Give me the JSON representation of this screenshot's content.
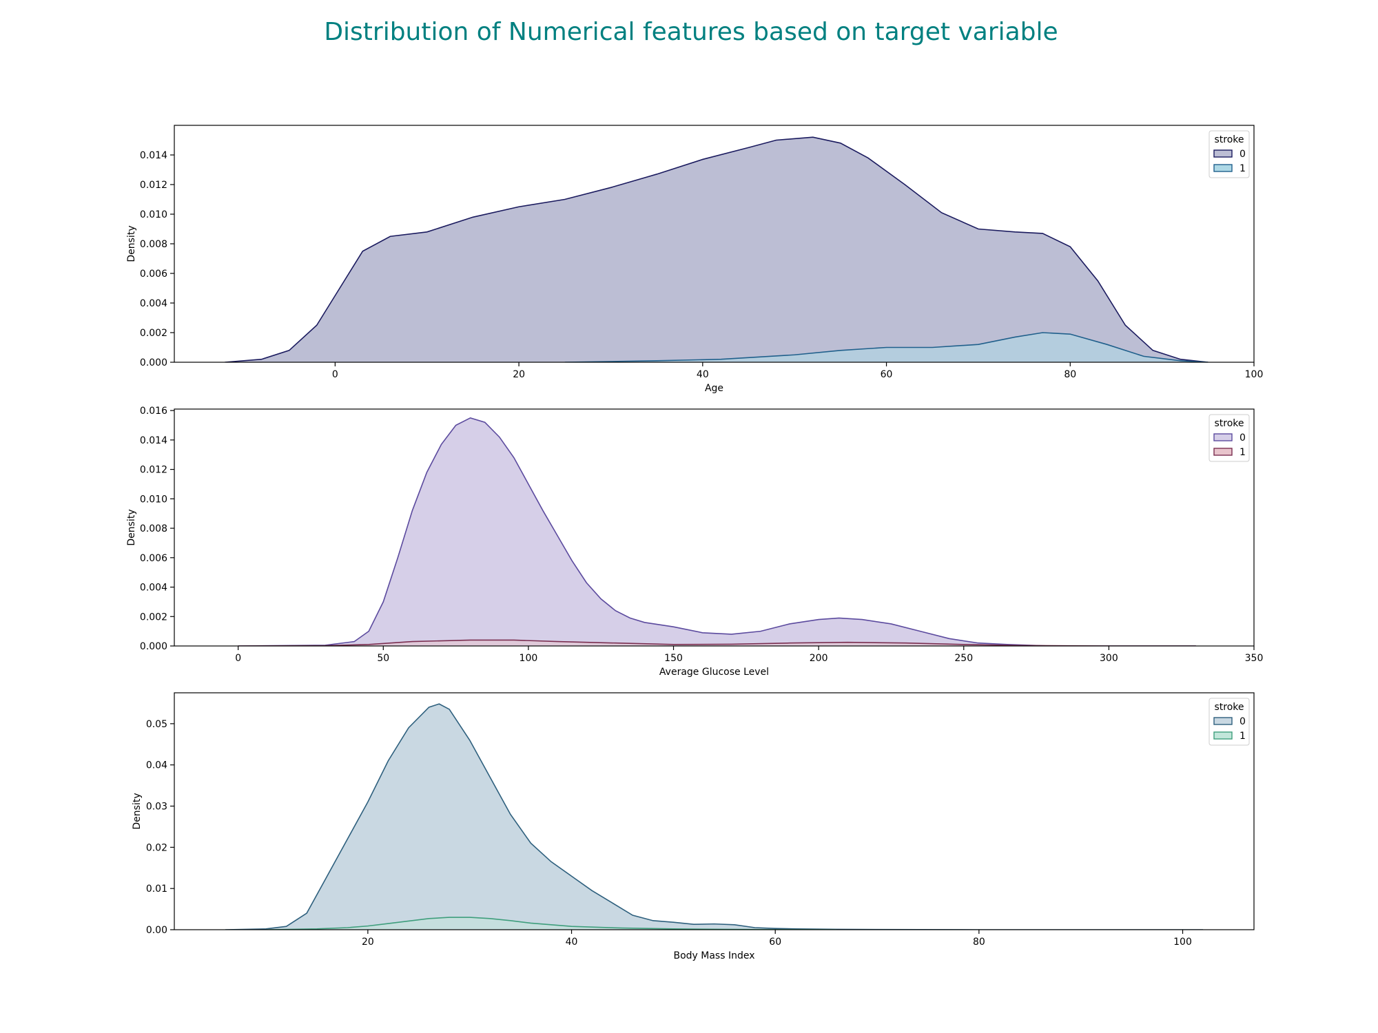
{
  "title": "Distribution of Numerical features based on target variable",
  "title_color": "#008080",
  "chart_data": [
    {
      "type": "area",
      "xlabel": "Age",
      "ylabel": "Density",
      "xlim": [
        -17.5,
        100
      ],
      "ylim": [
        0,
        0.016
      ],
      "xticks": [
        0,
        20,
        40,
        60,
        80,
        100
      ],
      "yticks": [
        0,
        0.002,
        0.004,
        0.006,
        0.008,
        0.01,
        0.012,
        0.014
      ],
      "ytick_decimals": 3,
      "legend": {
        "title": "stroke",
        "position": "top-right"
      },
      "series": [
        {
          "name": "0",
          "fill": "#bcbed4",
          "stroke": "#1a1a5e",
          "x": [
            -12,
            -8,
            -5,
            -2,
            0,
            3,
            6,
            10,
            15,
            20,
            25,
            30,
            35,
            40,
            45,
            48,
            52,
            55,
            58,
            62,
            66,
            70,
            74,
            77,
            80,
            83,
            86,
            89,
            92,
            95
          ],
          "y": [
            0,
            0.0002,
            0.0008,
            0.0025,
            0.0045,
            0.0075,
            0.0085,
            0.0088,
            0.0098,
            0.0105,
            0.011,
            0.0118,
            0.0127,
            0.0137,
            0.0145,
            0.015,
            0.0152,
            0.0148,
            0.0138,
            0.012,
            0.0101,
            0.009,
            0.0088,
            0.0087,
            0.0078,
            0.0055,
            0.0025,
            0.0008,
            0.0002,
            0
          ]
        },
        {
          "name": "1",
          "fill": "#add8e6",
          "stroke": "#1f5f8b",
          "x": [
            25,
            35,
            42,
            50,
            55,
            60,
            65,
            70,
            74,
            77,
            80,
            84,
            88,
            92,
            95
          ],
          "y": [
            0,
            0.0001,
            0.0002,
            0.0005,
            0.0008,
            0.001,
            0.001,
            0.0012,
            0.0017,
            0.002,
            0.0019,
            0.0012,
            0.0004,
            0.0001,
            0
          ]
        }
      ]
    },
    {
      "type": "area",
      "xlabel": "Average Glucose Level",
      "ylabel": "Density",
      "xlim": [
        -22,
        350
      ],
      "ylim": [
        0,
        0.0161
      ],
      "xticks": [
        0,
        50,
        100,
        150,
        200,
        250,
        300,
        350
      ],
      "yticks": [
        0,
        0.002,
        0.004,
        0.006,
        0.008,
        0.01,
        0.012,
        0.014,
        0.016
      ],
      "ytick_decimals": 3,
      "legend": {
        "title": "stroke",
        "position": "top-right"
      },
      "series": [
        {
          "name": "0",
          "fill": "#d6cfe8",
          "stroke": "#5b4a9e",
          "x": [
            0,
            30,
            40,
            45,
            50,
            55,
            60,
            65,
            70,
            75,
            80,
            85,
            90,
            95,
            100,
            105,
            110,
            115,
            120,
            125,
            130,
            135,
            140,
            150,
            160,
            170,
            180,
            190,
            200,
            207,
            215,
            225,
            235,
            245,
            255,
            265,
            280,
            300,
            330
          ],
          "y": [
            0,
            5e-05,
            0.0003,
            0.001,
            0.003,
            0.006,
            0.0092,
            0.0118,
            0.0137,
            0.015,
            0.0155,
            0.0152,
            0.0142,
            0.0128,
            0.011,
            0.0092,
            0.0075,
            0.0058,
            0.0043,
            0.0032,
            0.0024,
            0.0019,
            0.0016,
            0.0013,
            0.0009,
            0.0008,
            0.001,
            0.0015,
            0.0018,
            0.0019,
            0.0018,
            0.0015,
            0.001,
            0.0005,
            0.0002,
            0.0001,
            0,
            0,
            0
          ]
        },
        {
          "name": "1",
          "fill": "#e8c4cc",
          "stroke": "#7a2e50",
          "x": [
            0,
            30,
            45,
            60,
            80,
            95,
            110,
            130,
            150,
            170,
            190,
            210,
            230,
            250,
            270,
            300,
            330
          ],
          "y": [
            0,
            2e-05,
            0.0001,
            0.0003,
            0.0004,
            0.0004,
            0.0003,
            0.0002,
            0.0001,
            0.00012,
            0.0002,
            0.00025,
            0.0002,
            0.0001,
            3e-05,
            0,
            0
          ]
        }
      ]
    },
    {
      "type": "area",
      "xlabel": "Body Mass Index",
      "ylabel": "Density",
      "xlim": [
        1,
        107
      ],
      "ylim": [
        0,
        0.0575
      ],
      "xticks": [
        20,
        40,
        60,
        80,
        100
      ],
      "yticks": [
        0,
        0.01,
        0.02,
        0.03,
        0.04,
        0.05
      ],
      "ytick_decimals": 2,
      "legend": {
        "title": "stroke",
        "position": "top-right"
      },
      "series": [
        {
          "name": "0",
          "fill": "#c9d8e2",
          "stroke": "#2d5f7d",
          "x": [
            6,
            10,
            12,
            14,
            16,
            18,
            20,
            22,
            24,
            26,
            27,
            28,
            30,
            32,
            34,
            36,
            38,
            40,
            42,
            44,
            46,
            48,
            50,
            52,
            54,
            56,
            58,
            60,
            62,
            66,
            70,
            80,
            90,
            100,
            102
          ],
          "y": [
            0,
            0.0002,
            0.0008,
            0.004,
            0.013,
            0.022,
            0.031,
            0.041,
            0.049,
            0.054,
            0.0548,
            0.0535,
            0.046,
            0.037,
            0.028,
            0.021,
            0.0165,
            0.013,
            0.0095,
            0.0065,
            0.0035,
            0.0022,
            0.0018,
            0.0013,
            0.0014,
            0.0012,
            0.0005,
            0.0003,
            0.0002,
            0.0001,
            5e-05,
            0,
            0,
            0,
            0
          ]
        },
        {
          "name": "1",
          "fill": "#c2e6da",
          "stroke": "#3e9e7c",
          "x": [
            10,
            15,
            18,
            20,
            22,
            24,
            26,
            28,
            30,
            32,
            34,
            36,
            40,
            45,
            50,
            55,
            60,
            66
          ],
          "y": [
            0,
            0.0002,
            0.0005,
            0.0009,
            0.0015,
            0.0021,
            0.0027,
            0.003,
            0.003,
            0.0027,
            0.0022,
            0.0016,
            0.0008,
            0.0004,
            0.0002,
            0.0001,
            4e-05,
            0
          ]
        }
      ]
    }
  ]
}
